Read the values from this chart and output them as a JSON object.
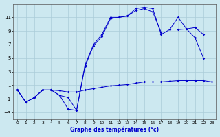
{
  "bg_color": "#cce8f0",
  "grid_color": "#aaccd8",
  "line_color": "#0000cc",
  "xlabel": "Graphe des températures (°c)",
  "ylim": [
    -4,
    13
  ],
  "xlim": [
    -0.5,
    23.5
  ],
  "yticks": [
    -3,
    -1,
    1,
    3,
    5,
    7,
    9,
    11
  ],
  "xticks": [
    0,
    1,
    2,
    3,
    4,
    5,
    6,
    7,
    8,
    9,
    10,
    11,
    12,
    13,
    14,
    15,
    16,
    17,
    18,
    19,
    20,
    21,
    22,
    23
  ],
  "curve1": [
    0.3,
    -1.5,
    -0.8,
    0.3,
    0.3,
    0.2,
    0.0,
    0.0,
    0.3,
    0.5,
    0.7,
    0.9,
    1.0,
    1.1,
    1.3,
    1.5,
    1.5,
    1.5,
    1.6,
    1.7,
    1.7,
    1.7,
    1.7,
    1.5
  ],
  "curve2": [
    0.3,
    -1.5,
    -0.8,
    0.3,
    0.3,
    -0.5,
    -0.8,
    -2.7,
    4.0,
    7.0,
    8.5,
    11.0,
    11.0,
    11.2,
    12.3,
    12.5,
    12.3,
    8.5,
    9.2,
    11.0,
    9.3,
    8.0,
    5.0,
    null
  ],
  "curve3": [
    0.3,
    -1.5,
    -0.8,
    0.3,
    0.3,
    -0.5,
    -2.5,
    -2.7,
    3.8,
    6.8,
    8.2,
    10.8,
    11.0,
    11.2,
    12.0,
    12.3,
    11.8,
    8.8,
    null,
    9.2,
    9.3,
    9.5,
    8.5,
    null
  ]
}
